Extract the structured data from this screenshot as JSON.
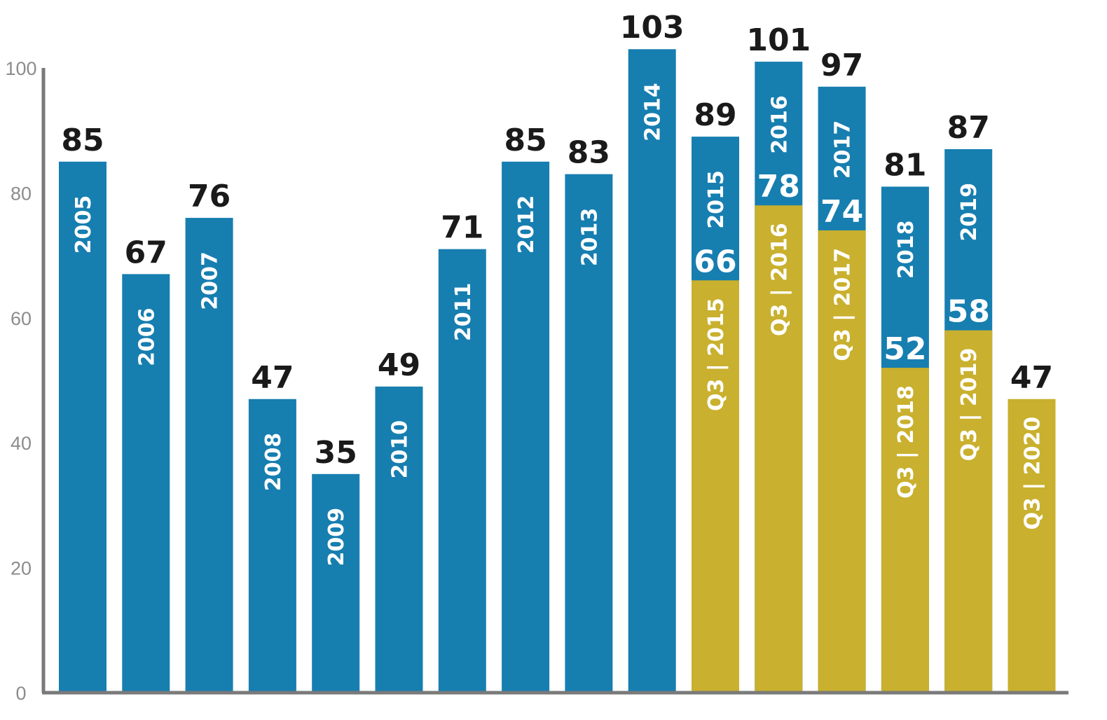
{
  "colors": {
    "full_year": "#177eb0",
    "q3": "#c9b02e",
    "value_text": "#1a1a1a",
    "highlight_value": "#c9b02e",
    "axis": "#7a7a7a",
    "tick_text": "#8c8c8c"
  },
  "chart_data": {
    "type": "bar",
    "stacking": "overlay",
    "title": "",
    "xlabel": "",
    "ylabel": "",
    "ylim": [
      0,
      100
    ],
    "yticks": [
      0,
      20,
      40,
      60,
      80,
      100
    ],
    "grid": false,
    "legend": "none",
    "categories": [
      "2005",
      "2006",
      "2007",
      "2008",
      "2009",
      "2010",
      "2011",
      "2012",
      "2013",
      "2014",
      "2015",
      "2016",
      "2017",
      "2018",
      "2019",
      "2020"
    ],
    "series": [
      {
        "values": [
          85,
          67,
          76,
          47,
          35,
          49,
          71,
          85,
          83,
          103,
          89,
          101,
          97,
          81,
          87,
          null
        ],
        "bar_labels": [
          "2005",
          "2006",
          "2007",
          "2008",
          "2009",
          "2010",
          "2011",
          "2012",
          "2013",
          "2014",
          "2015",
          "2016",
          "2017",
          "2018",
          "2019",
          ""
        ],
        "value_labels": [
          "85",
          "67",
          "76",
          "47",
          "35",
          "49",
          "71",
          "85",
          "83",
          "103",
          "89",
          "101",
          "97",
          "81",
          "87",
          ""
        ]
      },
      {
        "values": [
          null,
          null,
          null,
          null,
          null,
          null,
          null,
          null,
          null,
          null,
          66,
          78,
          74,
          52,
          58,
          47
        ],
        "bar_labels": [
          "",
          "",
          "",
          "",
          "",
          "",
          "",
          "",
          "",
          "",
          "Q3 | 2015",
          "Q3 | 2016",
          "Q3 | 2017",
          "Q3 | 2018",
          "Q3 | 2019",
          "Q3 | 2020"
        ],
        "value_labels": [
          "",
          "",
          "",
          "",
          "",
          "",
          "",
          "",
          "",
          "",
          "66",
          "78",
          "74",
          "52",
          "58",
          "47"
        ]
      }
    ]
  }
}
